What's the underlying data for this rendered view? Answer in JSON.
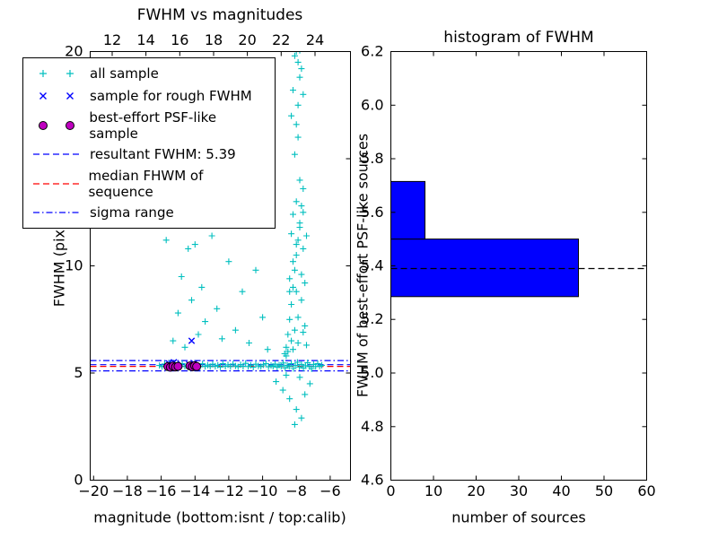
{
  "figure": {
    "background": "#ffffff"
  },
  "chart_data": [
    {
      "type": "scatter",
      "title": "FWHM vs magnitudes",
      "xlabel": "magnitude (bottom:isnt / top:calib)",
      "ylabel": "FWHM (pix)",
      "xlim": [
        -20.2,
        -4.8
      ],
      "top_xlim": [
        10.7,
        26.1
      ],
      "ylim": [
        0,
        20
      ],
      "xticks": [
        -20,
        -18,
        -16,
        -14,
        -12,
        -10,
        -8,
        -6
      ],
      "xtick_labels": [
        "−20",
        "−18",
        "−16",
        "−14",
        "−12",
        "−10",
        "−8",
        "−6"
      ],
      "top_xticks": [
        12,
        14,
        16,
        18,
        20,
        22,
        24
      ],
      "top_xtick_labels": [
        "12",
        "14",
        "16",
        "18",
        "20",
        "22",
        "24"
      ],
      "yticks": [
        0,
        5,
        10,
        15,
        20
      ],
      "ytick_labels": [
        "0",
        "5",
        "10",
        "15",
        "20"
      ],
      "grid": false,
      "legend_position": "upper left",
      "legend": {
        "items": [
          {
            "label": "all sample",
            "handle": "plus",
            "color": "#00bfbf"
          },
          {
            "label": "sample for rough FWHM",
            "handle": "x",
            "color": "#0000ff"
          },
          {
            "label": "best-effort PSF-like sample",
            "handle": "circle",
            "color": "#bf00bf",
            "edge": "#000000"
          },
          {
            "label": "resultant FWHM: 5.39",
            "handle": "dashed",
            "color": "#0000ff"
          },
          {
            "label": "median FHWM of sequence",
            "handle": "dashed",
            "color": "#ff0000"
          },
          {
            "label": "sigma range",
            "handle": "dashdot",
            "color": "#0000ff"
          }
        ]
      },
      "hlines": [
        {
          "label": "resultant FWHM: 5.39",
          "y": 5.39,
          "style": "dashed",
          "color": "#0000ff"
        },
        {
          "label": "median FHWM of sequence",
          "y": 5.31,
          "style": "dashed",
          "color": "#ff0000"
        },
        {
          "label": "sigma range upper",
          "y": 5.58,
          "style": "dashdot",
          "color": "#0000ff"
        },
        {
          "label": "sigma range lower",
          "y": 5.1,
          "style": "dashdot",
          "color": "#0000ff"
        }
      ],
      "series": [
        {
          "name": "all sample",
          "marker": "plus",
          "color": "#00bfbf",
          "points": [
            [
              -16.1,
              5.35
            ],
            [
              -15.95,
              5.3
            ],
            [
              -15.8,
              5.42
            ],
            [
              -15.65,
              5.3
            ],
            [
              -15.5,
              5.46
            ],
            [
              -15.35,
              5.33
            ],
            [
              -15.2,
              5.28
            ],
            [
              -15.05,
              5.38
            ],
            [
              -14.9,
              5.31
            ],
            [
              -14.75,
              5.44
            ],
            [
              -14.6,
              5.3
            ],
            [
              -14.45,
              5.36
            ],
            [
              -14.3,
              5.26
            ],
            [
              -14.15,
              5.4
            ],
            [
              -14.0,
              5.32
            ],
            [
              -13.85,
              5.35
            ],
            [
              -13.7,
              5.29
            ],
            [
              -13.55,
              5.43
            ],
            [
              -13.4,
              5.31
            ],
            [
              -13.25,
              5.37
            ],
            [
              -13.1,
              5.3
            ],
            [
              -12.95,
              5.41
            ],
            [
              -12.8,
              5.32
            ],
            [
              -12.65,
              5.36
            ],
            [
              -12.5,
              5.28
            ],
            [
              -12.35,
              5.44
            ],
            [
              -12.2,
              5.31
            ],
            [
              -12.05,
              5.38
            ],
            [
              -11.9,
              5.3
            ],
            [
              -11.75,
              5.42
            ],
            [
              -11.6,
              5.33
            ],
            [
              -11.45,
              5.29
            ],
            [
              -11.3,
              5.39
            ],
            [
              -11.15,
              5.31
            ],
            [
              -11.0,
              5.45
            ],
            [
              -10.85,
              5.3
            ],
            [
              -10.7,
              5.36
            ],
            [
              -10.55,
              5.27
            ],
            [
              -10.4,
              5.41
            ],
            [
              -10.25,
              5.33
            ],
            [
              -10.1,
              5.3
            ],
            [
              -9.95,
              5.38
            ],
            [
              -9.8,
              5.44
            ],
            [
              -9.65,
              5.29
            ],
            [
              -9.5,
              5.35
            ],
            [
              -9.38,
              5.31
            ],
            [
              -9.26,
              5.42
            ],
            [
              -9.14,
              5.27
            ],
            [
              -9.02,
              5.37
            ],
            [
              -8.9,
              5.32
            ],
            [
              -8.78,
              5.47
            ],
            [
              -8.66,
              5.24
            ],
            [
              -8.54,
              5.36
            ],
            [
              -8.42,
              5.3
            ],
            [
              -8.3,
              5.44
            ],
            [
              -8.18,
              5.21
            ],
            [
              -8.06,
              5.35
            ],
            [
              -7.94,
              5.5
            ],
            [
              -7.82,
              5.28
            ],
            [
              -7.7,
              5.4
            ],
            [
              -7.58,
              5.23
            ],
            [
              -7.46,
              5.34
            ],
            [
              -7.34,
              5.48
            ],
            [
              -7.22,
              5.3
            ],
            [
              -7.1,
              5.2
            ],
            [
              -6.98,
              5.4
            ],
            [
              -6.86,
              5.3
            ],
            [
              -6.74,
              5.44
            ],
            [
              -6.62,
              5.32
            ],
            [
              -6.5,
              5.36
            ],
            [
              -8.6,
              6.2
            ],
            [
              -8.5,
              6.8
            ],
            [
              -8.4,
              7.5
            ],
            [
              -8.3,
              8.2
            ],
            [
              -8.2,
              9.0
            ],
            [
              -8.1,
              9.8
            ],
            [
              -8.0,
              10.5
            ],
            [
              -7.9,
              11.2
            ],
            [
              -7.8,
              12.0
            ],
            [
              -7.7,
              12.8
            ],
            [
              -8.5,
              6.0
            ],
            [
              -8.3,
              6.5
            ],
            [
              -8.1,
              7.0
            ],
            [
              -7.9,
              7.6
            ],
            [
              -7.7,
              8.4
            ],
            [
              -8.4,
              9.4
            ],
            [
              -8.2,
              10.2
            ],
            [
              -8.0,
              11.0
            ],
            [
              -7.8,
              11.8
            ],
            [
              -7.6,
              12.5
            ],
            [
              -8.6,
              5.8
            ],
            [
              -8.2,
              6.1
            ],
            [
              -7.9,
              6.4
            ],
            [
              -7.6,
              6.9
            ],
            [
              -8.0,
              8.8
            ],
            [
              -7.7,
              9.6
            ],
            [
              -8.3,
              11.5
            ],
            [
              -8.0,
              13.0
            ],
            [
              -7.8,
              14.0
            ],
            [
              -8.1,
              15.2
            ],
            [
              -7.9,
              16.0
            ],
            [
              -7.6,
              10.8
            ],
            [
              -7.5,
              7.2
            ],
            [
              -7.4,
              6.3
            ],
            [
              -8.7,
              5.9
            ],
            [
              -7.5,
              9.2
            ],
            [
              -7.4,
              11.4
            ],
            [
              -7.6,
              13.6
            ],
            [
              -8.2,
              12.4
            ],
            [
              -8.4,
              8.8
            ],
            [
              -8.1,
              19.8
            ],
            [
              -7.9,
              19.5
            ],
            [
              -8.0,
              20.0
            ],
            [
              -7.8,
              18.8
            ],
            [
              -8.2,
              18.2
            ],
            [
              -7.7,
              19.2
            ],
            [
              -7.9,
              17.5
            ],
            [
              -8.3,
              17.0
            ],
            [
              -7.6,
              18.0
            ],
            [
              -8.0,
              16.6
            ],
            [
              -7.8,
              20.05
            ],
            [
              -15.7,
              11.2
            ],
            [
              -15.3,
              6.5
            ],
            [
              -15.0,
              7.8
            ],
            [
              -14.8,
              9.5
            ],
            [
              -14.6,
              6.2
            ],
            [
              -14.4,
              10.8
            ],
            [
              -14.2,
              8.4
            ],
            [
              -14.0,
              11.0
            ],
            [
              -13.8,
              6.8
            ],
            [
              -13.6,
              9.0
            ],
            [
              -13.4,
              7.4
            ],
            [
              -13.0,
              11.4
            ],
            [
              -12.7,
              8.0
            ],
            [
              -12.4,
              6.6
            ],
            [
              -12.0,
              10.2
            ],
            [
              -11.6,
              7.0
            ],
            [
              -11.2,
              8.8
            ],
            [
              -10.8,
              6.4
            ],
            [
              -10.4,
              9.8
            ],
            [
              -10.0,
              7.6
            ],
            [
              -9.7,
              6.1
            ],
            [
              -9.2,
              4.6
            ],
            [
              -8.8,
              4.2
            ],
            [
              -8.4,
              3.8
            ],
            [
              -8.0,
              3.3
            ],
            [
              -7.7,
              2.9
            ],
            [
              -7.5,
              4.0
            ],
            [
              -7.2,
              4.5
            ],
            [
              -8.6,
              4.9
            ],
            [
              -8.1,
              2.6
            ],
            [
              -7.8,
              4.8
            ]
          ]
        },
        {
          "name": "sample for rough FWHM",
          "marker": "x",
          "color": "#0000ff",
          "points": [
            [
              -15.55,
              5.45
            ],
            [
              -15.4,
              5.38
            ],
            [
              -15.25,
              5.5
            ],
            [
              -15.1,
              5.42
            ],
            [
              -14.35,
              5.4
            ],
            [
              -14.2,
              5.35
            ],
            [
              -14.05,
              5.45
            ],
            [
              -14.2,
              6.5
            ]
          ]
        },
        {
          "name": "best-effort PSF-like sample",
          "marker": "circle",
          "color": "#bf00bf",
          "edge": "#000000",
          "points": [
            [
              -15.6,
              5.3
            ],
            [
              -15.45,
              5.27
            ],
            [
              -15.3,
              5.32
            ],
            [
              -15.15,
              5.28
            ],
            [
              -15.0,
              5.31
            ],
            [
              -14.3,
              5.33
            ],
            [
              -14.15,
              5.29
            ],
            [
              -14.02,
              5.34
            ],
            [
              -13.9,
              5.3
            ]
          ]
        }
      ]
    },
    {
      "type": "bar",
      "orientation": "horizontal",
      "title": "histogram of FWHM",
      "xlabel": "number of sources",
      "ylabel": "FWHM of best-effort PSF-like sources",
      "xlim": [
        0,
        60
      ],
      "ylim": [
        4.6,
        6.2
      ],
      "xticks": [
        0,
        10,
        20,
        30,
        40,
        50,
        60
      ],
      "xtick_labels": [
        "0",
        "10",
        "20",
        "30",
        "40",
        "50",
        "60"
      ],
      "yticks": [
        4.6,
        4.8,
        5.0,
        5.2,
        5.4,
        5.6,
        5.8,
        6.0,
        6.2
      ],
      "ytick_labels": [
        "4.6",
        "4.8",
        "5.0",
        "5.2",
        "5.4",
        "5.6",
        "5.8",
        "6.0",
        "6.2"
      ],
      "bar_color": "#0000ff",
      "bar_edge_color": "#000000",
      "bars": [
        {
          "y0": 5.285,
          "y1": 5.5,
          "count": 44
        },
        {
          "y0": 5.5,
          "y1": 5.715,
          "count": 8
        }
      ],
      "hline": {
        "y": 5.39,
        "style": "dashed",
        "color": "#000000",
        "label": "resultant FWHM 5.39"
      }
    }
  ]
}
